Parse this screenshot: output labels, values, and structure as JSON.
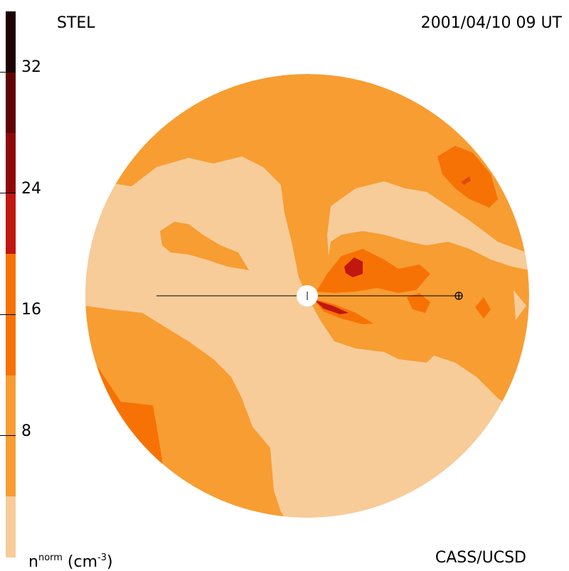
{
  "header": {
    "source": "STEL",
    "timestamp": "2001/04/10 09 UT"
  },
  "footer": {
    "credit": "CASS/UCSD",
    "unit_base": "n",
    "unit_sup": "norm",
    "unit_rest": " (cm",
    "unit_exp": "-3",
    "unit_close": ")"
  },
  "colorbar": {
    "ticks": [
      "32",
      "24",
      "16",
      "8"
    ],
    "colors": [
      "#f7cc99",
      "#f79d32",
      "#f77205",
      "#e04a0b",
      "#c0170f",
      "#8e0709",
      "#5e0404",
      "#1c0202"
    ]
  }
}
